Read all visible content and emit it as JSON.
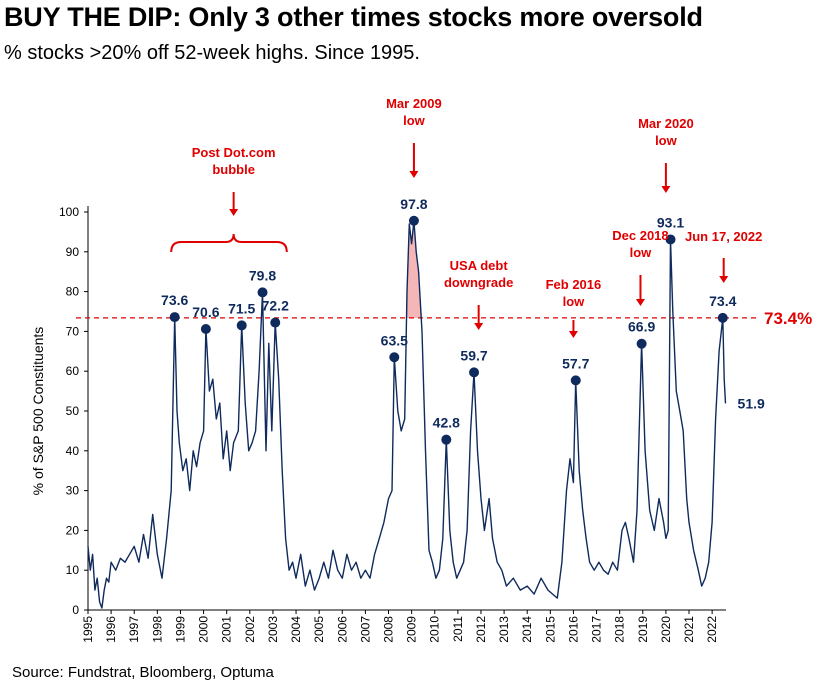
{
  "title": "BUY THE DIP: Only 3 other times stocks more oversold",
  "subtitle": "% stocks >20% off 52-week highs.  Since 1995.",
  "source": "Source: Fundstrat, Bloomberg, Optuma",
  "colors": {
    "line": "#0f2a5c",
    "accent": "#e00000",
    "shade": "#f4b6b6"
  },
  "chart_data": {
    "type": "line",
    "title": "BUY THE DIP: Only 3 other times stocks more oversold",
    "subtitle": "% stocks >20% off 52-week highs.  Since 1995.",
    "xlabel": "",
    "ylabel": "% of S&P 500 Constituents",
    "xlim": [
      1995,
      2022.6
    ],
    "ylim": [
      0,
      100
    ],
    "yticks": [
      0,
      10,
      20,
      30,
      40,
      50,
      60,
      70,
      80,
      90,
      100
    ],
    "xticks": [
      "1995",
      "1996",
      "1997",
      "1998",
      "1999",
      "2000",
      "2001",
      "2002",
      "2003",
      "2004",
      "2005",
      "2006",
      "2007",
      "2008",
      "2009",
      "2010",
      "2011",
      "2012",
      "2013",
      "2014",
      "2015",
      "2016",
      "2017",
      "2018",
      "2019",
      "2020",
      "2021",
      "2022"
    ],
    "grid": false,
    "series": [
      {
        "values": [
          [
            1995.0,
            16
          ],
          [
            1995.1,
            10
          ],
          [
            1995.2,
            14
          ],
          [
            1995.3,
            5
          ],
          [
            1995.4,
            8
          ],
          [
            1995.5,
            2
          ],
          [
            1995.6,
            0.5
          ],
          [
            1995.7,
            5
          ],
          [
            1995.8,
            8
          ],
          [
            1995.9,
            7
          ],
          [
            1996.0,
            12
          ],
          [
            1996.2,
            10
          ],
          [
            1996.4,
            13
          ],
          [
            1996.6,
            12
          ],
          [
            1996.8,
            14
          ],
          [
            1997.0,
            16
          ],
          [
            1997.2,
            12
          ],
          [
            1997.4,
            19
          ],
          [
            1997.6,
            13
          ],
          [
            1997.8,
            24
          ],
          [
            1998.0,
            14
          ],
          [
            1998.2,
            8
          ],
          [
            1998.4,
            18
          ],
          [
            1998.6,
            30
          ],
          [
            1998.75,
            73.6
          ],
          [
            1998.85,
            50
          ],
          [
            1998.95,
            42
          ],
          [
            1999.1,
            35
          ],
          [
            1999.25,
            38
          ],
          [
            1999.4,
            30
          ],
          [
            1999.55,
            40
          ],
          [
            1999.7,
            36
          ],
          [
            1999.85,
            42
          ],
          [
            2000.0,
            45
          ],
          [
            2000.1,
            70.6
          ],
          [
            2000.25,
            55
          ],
          [
            2000.4,
            58
          ],
          [
            2000.55,
            48
          ],
          [
            2000.7,
            52
          ],
          [
            2000.85,
            38
          ],
          [
            2001.0,
            45
          ],
          [
            2001.15,
            35
          ],
          [
            2001.3,
            42
          ],
          [
            2001.5,
            45
          ],
          [
            2001.65,
            71.5
          ],
          [
            2001.8,
            52
          ],
          [
            2001.95,
            40
          ],
          [
            2002.1,
            42
          ],
          [
            2002.25,
            45
          ],
          [
            2002.4,
            60
          ],
          [
            2002.55,
            79.8
          ],
          [
            2002.7,
            40
          ],
          [
            2002.82,
            67
          ],
          [
            2002.95,
            45
          ],
          [
            2003.1,
            72.2
          ],
          [
            2003.25,
            58
          ],
          [
            2003.4,
            35
          ],
          [
            2003.55,
            18
          ],
          [
            2003.7,
            10
          ],
          [
            2003.85,
            12
          ],
          [
            2004.0,
            8
          ],
          [
            2004.2,
            14
          ],
          [
            2004.4,
            6
          ],
          [
            2004.6,
            10
          ],
          [
            2004.8,
            5
          ],
          [
            2005.0,
            8
          ],
          [
            2005.2,
            12
          ],
          [
            2005.4,
            8
          ],
          [
            2005.6,
            15
          ],
          [
            2005.8,
            10
          ],
          [
            2006.0,
            8
          ],
          [
            2006.2,
            14
          ],
          [
            2006.4,
            10
          ],
          [
            2006.6,
            12
          ],
          [
            2006.8,
            8
          ],
          [
            2007.0,
            10
          ],
          [
            2007.2,
            8
          ],
          [
            2007.4,
            14
          ],
          [
            2007.6,
            18
          ],
          [
            2007.8,
            22
          ],
          [
            2008.0,
            28
          ],
          [
            2008.15,
            30
          ],
          [
            2008.25,
            63.5
          ],
          [
            2008.4,
            50
          ],
          [
            2008.55,
            45
          ],
          [
            2008.7,
            48
          ],
          [
            2008.8,
            80
          ],
          [
            2008.9,
            97
          ],
          [
            2009.0,
            92
          ],
          [
            2009.1,
            97.8
          ],
          [
            2009.2,
            90
          ],
          [
            2009.3,
            85
          ],
          [
            2009.45,
            70
          ],
          [
            2009.6,
            40
          ],
          [
            2009.75,
            15
          ],
          [
            2009.9,
            12
          ],
          [
            2010.05,
            8
          ],
          [
            2010.2,
            10
          ],
          [
            2010.35,
            18
          ],
          [
            2010.5,
            42.8
          ],
          [
            2010.65,
            20
          ],
          [
            2010.8,
            12
          ],
          [
            2010.95,
            8
          ],
          [
            2011.1,
            10
          ],
          [
            2011.25,
            12
          ],
          [
            2011.4,
            20
          ],
          [
            2011.55,
            45
          ],
          [
            2011.7,
            59.7
          ],
          [
            2011.85,
            40
          ],
          [
            2012.0,
            28
          ],
          [
            2012.15,
            20
          ],
          [
            2012.35,
            28
          ],
          [
            2012.5,
            18
          ],
          [
            2012.7,
            12
          ],
          [
            2012.9,
            10
          ],
          [
            2013.1,
            6
          ],
          [
            2013.4,
            8
          ],
          [
            2013.7,
            5
          ],
          [
            2014.0,
            6
          ],
          [
            2014.3,
            4
          ],
          [
            2014.6,
            8
          ],
          [
            2014.9,
            5
          ],
          [
            2015.1,
            4
          ],
          [
            2015.3,
            3
          ],
          [
            2015.5,
            12
          ],
          [
            2015.7,
            30
          ],
          [
            2015.85,
            38
          ],
          [
            2016.0,
            32
          ],
          [
            2016.1,
            57.7
          ],
          [
            2016.25,
            35
          ],
          [
            2016.4,
            25
          ],
          [
            2016.55,
            18
          ],
          [
            2016.7,
            12
          ],
          [
            2016.9,
            10
          ],
          [
            2017.1,
            12
          ],
          [
            2017.3,
            10
          ],
          [
            2017.5,
            9
          ],
          [
            2017.7,
            12
          ],
          [
            2017.9,
            10
          ],
          [
            2018.1,
            20
          ],
          [
            2018.25,
            22
          ],
          [
            2018.4,
            18
          ],
          [
            2018.6,
            12
          ],
          [
            2018.75,
            25
          ],
          [
            2018.95,
            66.9
          ],
          [
            2019.1,
            40
          ],
          [
            2019.3,
            25
          ],
          [
            2019.5,
            20
          ],
          [
            2019.7,
            28
          ],
          [
            2019.9,
            22
          ],
          [
            2020.0,
            18
          ],
          [
            2020.1,
            20
          ],
          [
            2020.2,
            93.1
          ],
          [
            2020.3,
            75
          ],
          [
            2020.45,
            55
          ],
          [
            2020.6,
            50
          ],
          [
            2020.75,
            45
          ],
          [
            2020.9,
            28
          ],
          [
            2021.0,
            22
          ],
          [
            2021.2,
            15
          ],
          [
            2021.4,
            10
          ],
          [
            2021.55,
            6
          ],
          [
            2021.7,
            8
          ],
          [
            2021.85,
            12
          ],
          [
            2022.0,
            22
          ],
          [
            2022.15,
            48
          ],
          [
            2022.3,
            65
          ],
          [
            2022.46,
            73.4
          ],
          [
            2022.52,
            58
          ],
          [
            2022.58,
            51.9
          ]
        ]
      }
    ],
    "labeled_points": [
      {
        "x": 1998.75,
        "y": 73.6,
        "label": "73.6"
      },
      {
        "x": 2000.1,
        "y": 70.6,
        "label": "70.6"
      },
      {
        "x": 2001.65,
        "y": 71.5,
        "label": "71.5"
      },
      {
        "x": 2002.55,
        "y": 79.8,
        "label": "79.8"
      },
      {
        "x": 2003.1,
        "y": 72.2,
        "label": "72.2"
      },
      {
        "x": 2008.25,
        "y": 63.5,
        "label": "63.5"
      },
      {
        "x": 2009.1,
        "y": 97.8,
        "label": "97.8"
      },
      {
        "x": 2010.5,
        "y": 42.8,
        "label": "42.8"
      },
      {
        "x": 2011.7,
        "y": 59.7,
        "label": "59.7"
      },
      {
        "x": 2016.1,
        "y": 57.7,
        "label": "57.7"
      },
      {
        "x": 2018.95,
        "y": 66.9,
        "label": "66.9"
      },
      {
        "x": 2020.2,
        "y": 93.1,
        "label": "93.1"
      },
      {
        "x": 2022.46,
        "y": 73.4,
        "label": "73.4"
      }
    ],
    "last_value": {
      "x": 2022.58,
      "y": 51.9,
      "label": "51.9"
    },
    "reference_line": {
      "y": 73.4,
      "label": "73.4%",
      "style": "dashed"
    },
    "shaded_range": {
      "x_from": 2008.8,
      "x_to": 2009.6,
      "y_above": 73.4
    },
    "annotations": [
      {
        "lines": [
          "Post Dot.com",
          "bubble"
        ],
        "x": 2001.3,
        "brace_from": 1998.6,
        "brace_to": 2003.6
      },
      {
        "lines": [
          "Mar 2009",
          "low"
        ],
        "x": 2009.1
      },
      {
        "lines": [
          "USA debt",
          "downgrade"
        ],
        "x": 2011.9
      },
      {
        "lines": [
          "Feb 2016",
          "low"
        ],
        "x": 2016.0
      },
      {
        "lines": [
          "Dec 2018",
          "low"
        ],
        "x": 2018.9
      },
      {
        "lines": [
          "Mar 2020",
          "low"
        ],
        "x": 2020.0
      },
      {
        "lines": [
          "Jun 17, 2022"
        ],
        "x": 2022.5
      }
    ]
  }
}
